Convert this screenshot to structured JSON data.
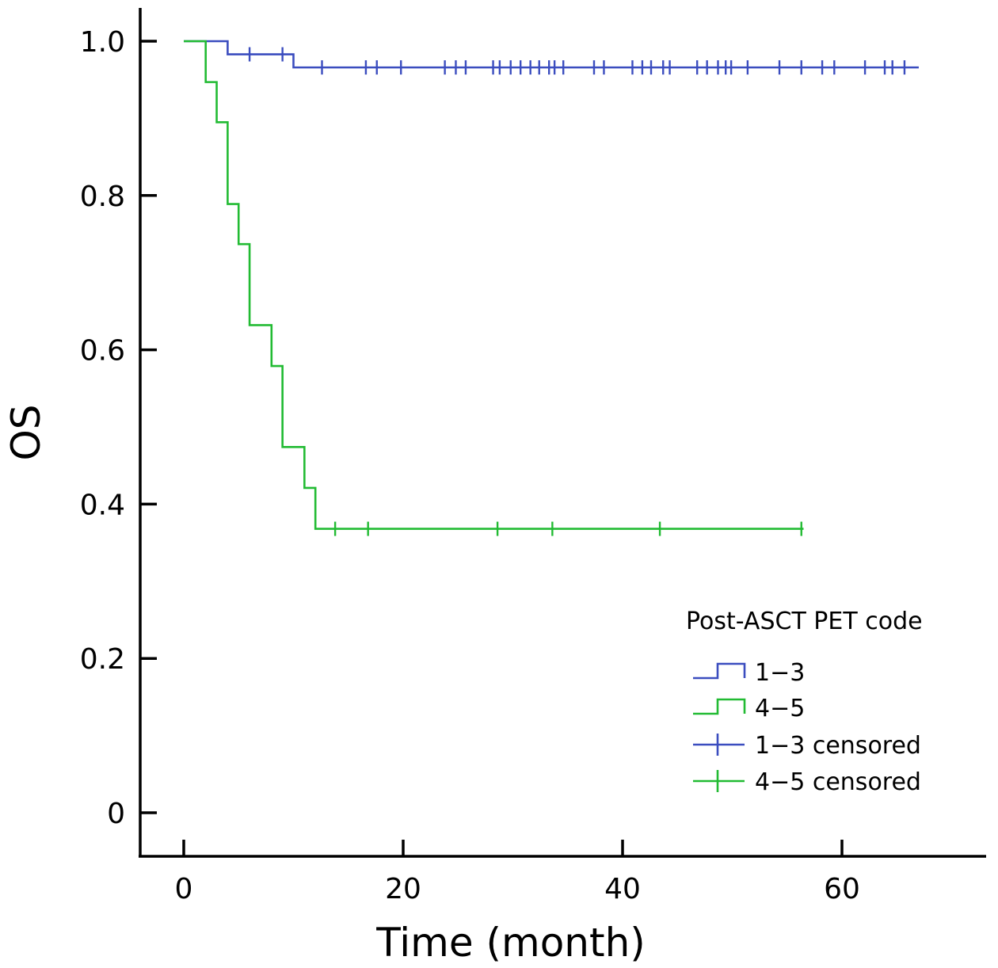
{
  "chart_data": {
    "type": "line",
    "subtype": "kaplan-meier",
    "title": "",
    "xlabel": "Time (month)",
    "ylabel": "OS",
    "xlim": [
      -4,
      73
    ],
    "ylim": [
      -0.11,
      1.09
    ],
    "xticks": [
      0,
      20,
      40,
      60
    ],
    "xtick_labels": [
      "0",
      "20",
      "40",
      "60"
    ],
    "yticks": [
      0,
      0.2,
      0.4,
      0.6,
      0.8,
      1.0
    ],
    "ytick_labels": [
      "0",
      "0.2",
      "0.4",
      "0.6",
      "0.8",
      "1.0"
    ],
    "grid": false,
    "legend": {
      "title": "Post-ASCT PET code",
      "position": "bottom-right",
      "entries": [
        {
          "label": "1−3",
          "kind": "line",
          "color": "#3b4dbf"
        },
        {
          "label": "4−5",
          "kind": "line",
          "color": "#22bb33"
        },
        {
          "label": "1−3 censored",
          "kind": "censor",
          "color": "#3b4dbf"
        },
        {
          "label": "4−5 censored",
          "kind": "censor",
          "color": "#22bb33"
        }
      ]
    },
    "series": [
      {
        "name": "1−3",
        "color": "#3b4dbf",
        "steps": [
          [
            0,
            1.0
          ],
          [
            4,
            0.983
          ],
          [
            10,
            0.966
          ],
          [
            67,
            0.966
          ]
        ],
        "censored": [
          [
            6,
            0.983
          ],
          [
            9,
            0.983
          ],
          [
            12.6,
            0.966
          ],
          [
            16.6,
            0.966
          ],
          [
            17.6,
            0.966
          ],
          [
            19.8,
            0.966
          ],
          [
            23.8,
            0.966
          ],
          [
            24.8,
            0.966
          ],
          [
            25.7,
            0.966
          ],
          [
            28.2,
            0.966
          ],
          [
            28.8,
            0.966
          ],
          [
            29.8,
            0.966
          ],
          [
            30.7,
            0.966
          ],
          [
            31.6,
            0.966
          ],
          [
            32.4,
            0.966
          ],
          [
            33.3,
            0.966
          ],
          [
            33.8,
            0.966
          ],
          [
            34.6,
            0.966
          ],
          [
            37.4,
            0.966
          ],
          [
            38.3,
            0.966
          ],
          [
            40.9,
            0.966
          ],
          [
            41.8,
            0.966
          ],
          [
            42.6,
            0.966
          ],
          [
            43.7,
            0.966
          ],
          [
            44.3,
            0.966
          ],
          [
            46.8,
            0.966
          ],
          [
            47.7,
            0.966
          ],
          [
            48.7,
            0.966
          ],
          [
            49.4,
            0.966
          ],
          [
            49.9,
            0.966
          ],
          [
            51.4,
            0.966
          ],
          [
            54.3,
            0.966
          ],
          [
            56.3,
            0.966
          ],
          [
            58.2,
            0.966
          ],
          [
            59.3,
            0.966
          ],
          [
            62.1,
            0.966
          ],
          [
            63.9,
            0.966
          ],
          [
            64.6,
            0.966
          ],
          [
            65.7,
            0.966
          ]
        ]
      },
      {
        "name": "4−5",
        "color": "#22bb33",
        "steps": [
          [
            0,
            1.0
          ],
          [
            2,
            0.947
          ],
          [
            3,
            0.895
          ],
          [
            4,
            0.789
          ],
          [
            5,
            0.737
          ],
          [
            6,
            0.632
          ],
          [
            8,
            0.579
          ],
          [
            9,
            0.474
          ],
          [
            11,
            0.421
          ],
          [
            12,
            0.368
          ],
          [
            56.5,
            0.368
          ]
        ],
        "censored": [
          [
            13.8,
            0.368
          ],
          [
            16.8,
            0.368
          ],
          [
            28.6,
            0.368
          ],
          [
            33.6,
            0.368
          ],
          [
            43.4,
            0.368
          ],
          [
            56.3,
            0.368
          ]
        ]
      }
    ]
  }
}
